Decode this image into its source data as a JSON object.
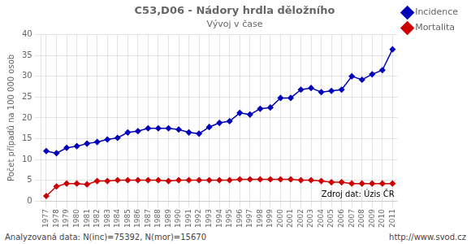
{
  "chart_data": {
    "type": "line",
    "title": "C53,D06 - Nádory hrdla děložního",
    "subtitle": "Vývoj v čase",
    "ylabel": "Počet případů na 100 000 osob",
    "annotation": "Zdroj dat: Úzis ČR",
    "footer_left": "Analyzovaná data: N(inc)=75392, N(mor)=15670",
    "footer_right": "http://www.svod.cz",
    "categories": [
      "1977",
      "1978",
      "1979",
      "1980",
      "1981",
      "1982",
      "1983",
      "1984",
      "1985",
      "1986",
      "1987",
      "1988",
      "1989",
      "1990",
      "1991",
      "1992",
      "1993",
      "1994",
      "1995",
      "1996",
      "1997",
      "1998",
      "1999",
      "2000",
      "2001",
      "2002",
      "2003",
      "2004",
      "2005",
      "2006",
      "2007",
      "2008",
      "2009",
      "2010",
      "2011"
    ],
    "series": [
      {
        "name": "Incidence",
        "color": "#0000bb",
        "marker": "diamond",
        "values": [
          12.0,
          11.5,
          12.8,
          13.2,
          13.8,
          14.2,
          14.8,
          15.2,
          16.5,
          16.8,
          17.5,
          17.5,
          17.5,
          17.2,
          16.5,
          16.2,
          17.8,
          18.8,
          19.2,
          21.2,
          20.8,
          22.2,
          22.5,
          24.8,
          24.8,
          26.8,
          27.2,
          26.2,
          26.5,
          26.8,
          30.0,
          29.2,
          30.5,
          31.5,
          36.5
        ]
      },
      {
        "name": "Mortalita",
        "color": "#cc0000",
        "marker": "diamond",
        "values": [
          1.2,
          3.5,
          4.2,
          4.2,
          4.0,
          4.8,
          4.8,
          5.0,
          5.0,
          5.0,
          5.0,
          5.0,
          4.8,
          5.0,
          5.0,
          5.0,
          5.0,
          5.0,
          5.0,
          5.2,
          5.2,
          5.2,
          5.2,
          5.2,
          5.2,
          5.0,
          5.0,
          4.8,
          4.5,
          4.5,
          4.2,
          4.2,
          4.2,
          4.2,
          4.2
        ]
      }
    ],
    "ylim": [
      0,
      40
    ],
    "yticks": [
      0,
      5,
      10,
      15,
      20,
      25,
      30,
      35,
      40
    ],
    "grid": true,
    "legend": "right"
  }
}
